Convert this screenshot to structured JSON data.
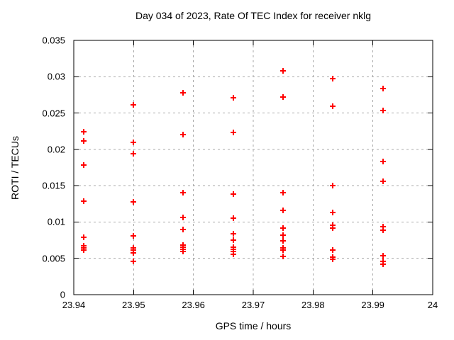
{
  "chart_data": {
    "type": "scatter",
    "title": "Day 034 of 2023, Rate Of TEC Index for receiver nklg",
    "xlabel": "GPS time / hours",
    "ylabel": "ROTI / TECUs",
    "xlim": [
      23.94,
      24
    ],
    "ylim": [
      0,
      0.035
    ],
    "xtick_values": [
      23.94,
      23.95,
      23.96,
      23.97,
      23.98,
      23.99,
      24
    ],
    "xtick_labels": [
      "23.94",
      "23.95",
      "23.96",
      "23.97",
      "23.98",
      "23.99",
      "24"
    ],
    "ytick_values": [
      0,
      0.005,
      0.01,
      0.015,
      0.02,
      0.025,
      0.03,
      0.035
    ],
    "ytick_labels": [
      "0",
      "0.005",
      "0.01",
      "0.015",
      "0.02",
      "0.025",
      "0.03",
      "0.035"
    ],
    "grid": true,
    "legend": "none",
    "marker": "plus",
    "colors": {
      "points": "#ff0000",
      "grid": "#a8a8a8",
      "axis": "#000000",
      "text": "#000000",
      "background": "#ffffff"
    },
    "series": [
      {
        "name": "ROTI",
        "points": [
          [
            23.9417,
            0.0224
          ],
          [
            23.9417,
            0.0212
          ],
          [
            23.9417,
            0.0178
          ],
          [
            23.9417,
            0.0129
          ],
          [
            23.9417,
            0.0079
          ],
          [
            23.9417,
            0.0067
          ],
          [
            23.9417,
            0.0064
          ],
          [
            23.9417,
            0.0061
          ],
          [
            23.95,
            0.0261
          ],
          [
            23.95,
            0.021
          ],
          [
            23.95,
            0.0194
          ],
          [
            23.95,
            0.0128
          ],
          [
            23.95,
            0.0081
          ],
          [
            23.95,
            0.0064
          ],
          [
            23.95,
            0.0061
          ],
          [
            23.95,
            0.0058
          ],
          [
            23.95,
            0.0046
          ],
          [
            23.9583,
            0.0278
          ],
          [
            23.9583,
            0.022
          ],
          [
            23.9583,
            0.014
          ],
          [
            23.9583,
            0.0106
          ],
          [
            23.9583,
            0.009
          ],
          [
            23.9583,
            0.0068
          ],
          [
            23.9583,
            0.0065
          ],
          [
            23.9583,
            0.0062
          ],
          [
            23.9583,
            0.0059
          ],
          [
            23.9667,
            0.0271
          ],
          [
            23.9667,
            0.0223
          ],
          [
            23.9667,
            0.0138
          ],
          [
            23.9667,
            0.0105
          ],
          [
            23.9667,
            0.0084
          ],
          [
            23.9667,
            0.0075
          ],
          [
            23.9667,
            0.0065
          ],
          [
            23.9667,
            0.0062
          ],
          [
            23.9667,
            0.0059
          ],
          [
            23.9667,
            0.0056
          ],
          [
            23.975,
            0.0308
          ],
          [
            23.975,
            0.0272
          ],
          [
            23.975,
            0.014
          ],
          [
            23.975,
            0.0116
          ],
          [
            23.975,
            0.0092
          ],
          [
            23.975,
            0.0082
          ],
          [
            23.975,
            0.0074
          ],
          [
            23.975,
            0.0064
          ],
          [
            23.975,
            0.0061
          ],
          [
            23.975,
            0.0053
          ],
          [
            23.9833,
            0.0297
          ],
          [
            23.9833,
            0.0259
          ],
          [
            23.9833,
            0.015
          ],
          [
            23.9833,
            0.0113
          ],
          [
            23.9833,
            0.0096
          ],
          [
            23.9833,
            0.0092
          ],
          [
            23.9833,
            0.0061
          ],
          [
            23.9833,
            0.0052
          ],
          [
            23.9833,
            0.0049
          ],
          [
            23.9917,
            0.0284
          ],
          [
            23.9917,
            0.0253
          ],
          [
            23.9917,
            0.0183
          ],
          [
            23.9917,
            0.0156
          ],
          [
            23.9917,
            0.0094
          ],
          [
            23.9917,
            0.0089
          ],
          [
            23.9917,
            0.0054
          ],
          [
            23.9917,
            0.0046
          ],
          [
            23.9917,
            0.0042
          ]
        ]
      }
    ]
  }
}
